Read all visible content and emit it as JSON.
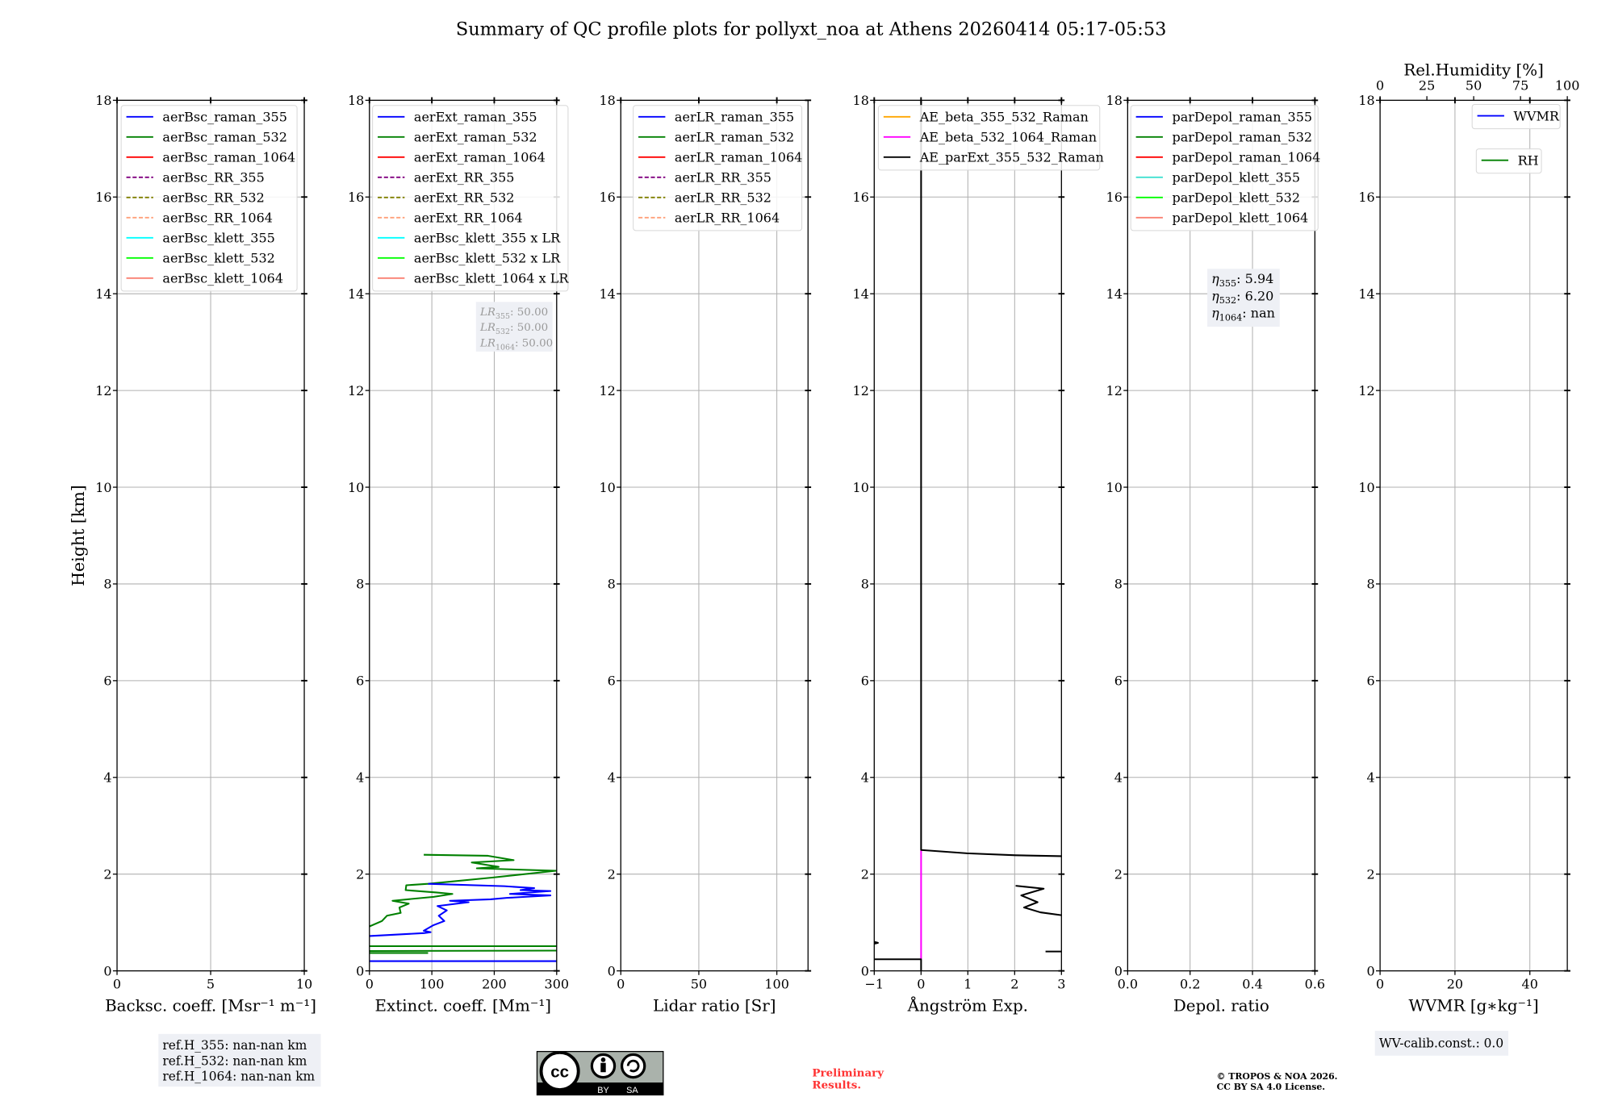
{
  "title": "Summary of QC profile plots for pollyxt_noa at Athens 20260414 05:17-05:53",
  "y_axis_label": "Height [km]",
  "chart_data": [
    {
      "id": "backscatter",
      "type": "line",
      "xlabel": "Backsc. coeff. [Msr⁻¹ m⁻¹]",
      "xlim": [
        0,
        10
      ],
      "xticks": [
        0,
        5,
        10
      ],
      "xtick_labels": [
        "0",
        "5",
        "10"
      ],
      "ylim": [
        0,
        18
      ],
      "yticks": [
        0,
        2,
        4,
        6,
        8,
        10,
        12,
        14,
        16,
        18
      ],
      "ytick_labels": [
        "0",
        "2",
        "4",
        "6",
        "8",
        "10",
        "12",
        "14",
        "16",
        "18"
      ],
      "grid": true,
      "legend_position": "top-right",
      "legend": [
        {
          "label": "aerBsc_raman_355",
          "color": "#0000ff",
          "dashed": false
        },
        {
          "label": "aerBsc_raman_532",
          "color": "#008000",
          "dashed": false
        },
        {
          "label": "aerBsc_raman_1064",
          "color": "#ff0000",
          "dashed": false
        },
        {
          "label": "aerBsc_RR_355",
          "color": "#800080",
          "dashed": true
        },
        {
          "label": "aerBsc_RR_532",
          "color": "#808000",
          "dashed": true
        },
        {
          "label": "aerBsc_RR_1064",
          "color": "#ffa07a",
          "dashed": true
        },
        {
          "label": "aerBsc_klett_355",
          "color": "#00ffff",
          "dashed": false
        },
        {
          "label": "aerBsc_klett_532",
          "color": "#00ff00",
          "dashed": false
        },
        {
          "label": "aerBsc_klett_1064",
          "color": "#fa8072",
          "dashed": false
        }
      ],
      "series": []
    },
    {
      "id": "extinction",
      "type": "line",
      "xlabel": "Extinct. coeff. [Mm⁻¹]",
      "xlim": [
        0,
        300
      ],
      "xticks": [
        0,
        100,
        200,
        300
      ],
      "xtick_labels": [
        "0",
        "100",
        "200",
        "300"
      ],
      "ylim": [
        0,
        18
      ],
      "yticks": [
        0,
        2,
        4,
        6,
        8,
        10,
        12,
        14,
        16,
        18
      ],
      "ytick_labels": [
        "0",
        "2",
        "4",
        "6",
        "8",
        "10",
        "12",
        "14",
        "16",
        "18"
      ],
      "grid": true,
      "legend_position": "top-right",
      "legend": [
        {
          "label": "aerExt_raman_355",
          "color": "#0000ff",
          "dashed": false
        },
        {
          "label": "aerExt_raman_532",
          "color": "#008000",
          "dashed": false
        },
        {
          "label": "aerExt_raman_1064",
          "color": "#ff0000",
          "dashed": false
        },
        {
          "label": "aerExt_RR_355",
          "color": "#800080",
          "dashed": true
        },
        {
          "label": "aerExt_RR_532",
          "color": "#808000",
          "dashed": true
        },
        {
          "label": "aerExt_RR_1064",
          "color": "#ffa07a",
          "dashed": true
        },
        {
          "label": "aerBsc_klett_355 x LR",
          "color": "#00ffff",
          "dashed": false
        },
        {
          "label": "aerBsc_klett_532 x LR",
          "color": "#00ff00",
          "dashed": false
        },
        {
          "label": "aerBsc_klett_1064 x LR",
          "color": "#fa8072",
          "dashed": false
        }
      ],
      "series": [
        {
          "name": "aerExt_raman_532",
          "color": "#008000",
          "points": [
            [
              87,
              2.4
            ],
            [
              190,
              2.38
            ],
            [
              231,
              2.29
            ],
            [
              164,
              2.24
            ],
            [
              207,
              2.15
            ],
            [
              172,
              2.12
            ],
            [
              299,
              2.07
            ],
            [
              198,
              1.93
            ],
            [
              94,
              1.8
            ],
            [
              59,
              1.77
            ],
            [
              58,
              1.67
            ],
            [
              107,
              1.62
            ],
            [
              133,
              1.59
            ],
            [
              103,
              1.53
            ],
            [
              37,
              1.45
            ],
            [
              63,
              1.39
            ],
            [
              48,
              1.31
            ],
            [
              50,
              1.2
            ],
            [
              28,
              1.14
            ],
            [
              20,
              1.03
            ],
            [
              0,
              0.92
            ]
          ]
        },
        {
          "name": "aerExt_raman_532",
          "color": "#008000",
          "points": [
            [
              0,
              0.51
            ],
            [
              300,
              0.51
            ]
          ]
        },
        {
          "name": "aerExt_raman_532",
          "color": "#008000",
          "points": [
            [
              0,
              0.41
            ],
            [
              300,
              0.42
            ]
          ]
        },
        {
          "name": "aerExt_raman_532",
          "color": "#008000",
          "points": [
            [
              0,
              0.37
            ],
            [
              94,
              0.37
            ]
          ]
        },
        {
          "name": "aerExt_raman_355",
          "color": "#0000ff",
          "points": [
            [
              0,
              0.72
            ],
            [
              87,
              0.78
            ],
            [
              98,
              0.8
            ],
            [
              87,
              0.83
            ],
            [
              102,
              0.94
            ],
            [
              120,
              1.03
            ],
            [
              111,
              1.14
            ],
            [
              124,
              1.25
            ],
            [
              109,
              1.34
            ],
            [
              159,
              1.42
            ],
            [
              129,
              1.45
            ],
            [
              194,
              1.48
            ],
            [
              220,
              1.51
            ],
            [
              290,
              1.56
            ],
            [
              225,
              1.59
            ],
            [
              290,
              1.65
            ],
            [
              242,
              1.67
            ],
            [
              264,
              1.71
            ],
            [
              216,
              1.75
            ],
            [
              94,
              1.8
            ]
          ]
        },
        {
          "name": "aerExt_raman_355",
          "color": "#0000ff",
          "points": [
            [
              0,
              0.2
            ],
            [
              300,
              0.2
            ]
          ]
        }
      ]
    },
    {
      "id": "lidar-ratio",
      "type": "line",
      "xlabel": "Lidar ratio [Sr]",
      "xlim": [
        0,
        120
      ],
      "xticks": [
        0,
        50,
        100
      ],
      "xtick_labels": [
        "0",
        "50",
        "100"
      ],
      "ylim": [
        0,
        18
      ],
      "yticks": [
        0,
        2,
        4,
        6,
        8,
        10,
        12,
        14,
        16,
        18
      ],
      "ytick_labels": [
        "0",
        "2",
        "4",
        "6",
        "8",
        "10",
        "12",
        "14",
        "16",
        "18"
      ],
      "grid": true,
      "legend_position": "top-right",
      "legend": [
        {
          "label": "aerLR_raman_355",
          "color": "#0000ff",
          "dashed": false
        },
        {
          "label": "aerLR_raman_532",
          "color": "#008000",
          "dashed": false
        },
        {
          "label": "aerLR_raman_1064",
          "color": "#ff0000",
          "dashed": false
        },
        {
          "label": "aerLR_RR_355",
          "color": "#800080",
          "dashed": true
        },
        {
          "label": "aerLR_RR_532",
          "color": "#808000",
          "dashed": true
        },
        {
          "label": "aerLR_RR_1064",
          "color": "#ffa07a",
          "dashed": true
        }
      ],
      "series": []
    },
    {
      "id": "angstrom",
      "type": "line",
      "xlabel": "Ångström Exp.",
      "xlim": [
        -1,
        3
      ],
      "xticks": [
        -1,
        0,
        1,
        2,
        3
      ],
      "xtick_labels": [
        "−1",
        "0",
        "1",
        "2",
        "3"
      ],
      "ylim": [
        0,
        18
      ],
      "yticks": [
        0,
        2,
        4,
        6,
        8,
        10,
        12,
        14,
        16,
        18
      ],
      "ytick_labels": [
        "0",
        "2",
        "4",
        "6",
        "8",
        "10",
        "12",
        "14",
        "16",
        "18"
      ],
      "grid": true,
      "legend_position": "top",
      "legend": [
        {
          "label": "AE_beta_355_532_Raman",
          "color": "#ffa500",
          "dashed": false
        },
        {
          "label": "AE_beta_532_1064_Raman",
          "color": "#ff00ff",
          "dashed": false
        },
        {
          "label": "AE_parExt_355_532_Raman",
          "color": "#000000",
          "dashed": false
        }
      ],
      "series": [
        {
          "name": "AE_beta_532_1064_Raman",
          "color": "#ff00ff",
          "points": [
            [
              0,
              0.24
            ],
            [
              0,
              2.5
            ]
          ]
        },
        {
          "name": "AE_parExt_355_532_Raman",
          "color": "#000000",
          "points": [
            [
              0,
              18
            ],
            [
              0,
              2.5
            ],
            [
              0.98,
              2.43
            ],
            [
              2.02,
              2.39
            ],
            [
              3.01,
              2.37
            ]
          ]
        },
        {
          "name": "AE_parExt_355_532_Raman",
          "color": "#000000",
          "points": [
            [
              -1,
              0.24
            ],
            [
              0,
              0.24
            ],
            [
              0,
              0
            ]
          ]
        },
        {
          "name": "AE_parExt_355_532_Raman",
          "color": "#000000",
          "points": [
            [
              2.02,
              1.76
            ],
            [
              2.62,
              1.7
            ],
            [
              2.14,
              1.56
            ],
            [
              2.49,
              1.42
            ],
            [
              2.2,
              1.31
            ],
            [
              2.55,
              1.21
            ],
            [
              3.0,
              1.15
            ]
          ]
        },
        {
          "name": "AE_parExt_355_532_Raman",
          "color": "#000000",
          "points": [
            [
              2.66,
              0.4
            ],
            [
              3.0,
              0.4
            ]
          ]
        },
        {
          "name": "AE_parExt_355_532_Raman",
          "color": "#000000",
          "points": [
            [
              -1,
              0.6
            ],
            [
              -0.92,
              0.58
            ],
            [
              -1,
              0.56
            ]
          ]
        }
      ]
    },
    {
      "id": "depolarization",
      "type": "line",
      "xlabel": "Depol. ratio",
      "xlim": [
        0,
        0.6
      ],
      "xticks": [
        0,
        0.2,
        0.4,
        0.6
      ],
      "xtick_labels": [
        "0.0",
        "0.2",
        "0.4",
        "0.6"
      ],
      "ylim": [
        0,
        18
      ],
      "yticks": [
        0,
        2,
        4,
        6,
        8,
        10,
        12,
        14,
        16,
        18
      ],
      "ytick_labels": [
        "0",
        "2",
        "4",
        "6",
        "8",
        "10",
        "12",
        "14",
        "16",
        "18"
      ],
      "grid": true,
      "legend_position": "top-right",
      "legend": [
        {
          "label": "parDepol_raman_355",
          "color": "#0000ff",
          "dashed": false
        },
        {
          "label": "parDepol_raman_532",
          "color": "#008000",
          "dashed": false
        },
        {
          "label": "parDepol_raman_1064",
          "color": "#ff0000",
          "dashed": false
        },
        {
          "label": "parDepol_klett_355",
          "color": "#40e0d0",
          "dashed": false
        },
        {
          "label": "parDepol_klett_532",
          "color": "#00ff00",
          "dashed": false
        },
        {
          "label": "parDepol_klett_1064",
          "color": "#fa8072",
          "dashed": false
        }
      ],
      "series": []
    },
    {
      "id": "water-vapor",
      "type": "line",
      "xlabel": "WVMR [g∗kg⁻¹]",
      "xlim": [
        0,
        50
      ],
      "xticks": [
        0,
        20,
        40
      ],
      "xtick_labels": [
        "0",
        "20",
        "40"
      ],
      "ylim": [
        0,
        18
      ],
      "yticks": [
        0,
        2,
        4,
        6,
        8,
        10,
        12,
        14,
        16,
        18
      ],
      "ytick_labels": [
        "0",
        "2",
        "4",
        "6",
        "8",
        "10",
        "12",
        "14",
        "16",
        "18"
      ],
      "grid": true,
      "legend_position": "top-right",
      "secondary_xaxis": {
        "label": "Rel.Humidity [%]",
        "xlim": [
          0,
          100
        ],
        "xticks": [
          0,
          25,
          50,
          75,
          100
        ],
        "xtick_labels": [
          "0",
          "25",
          "50",
          "75",
          "100"
        ]
      },
      "legend": [
        {
          "label": "WVMR",
          "color": "#0000ff",
          "dashed": false
        },
        {
          "label": "RH",
          "color": "#008000",
          "dashed": false
        }
      ],
      "series": []
    }
  ],
  "annotations": {
    "lr_box": [
      {
        "symbol": "LR",
        "sub": "355",
        "value": ": 50.00"
      },
      {
        "symbol": "LR",
        "sub": "532",
        "value": ": 50.00"
      },
      {
        "symbol": "LR",
        "sub": "1064",
        "value": ": 50.00"
      }
    ],
    "eta_box": [
      {
        "symbol": "η",
        "sub": "355",
        "value": ": 5.94"
      },
      {
        "symbol": "η",
        "sub": "532",
        "value": ": 6.20"
      },
      {
        "symbol": "η",
        "sub": "1064",
        "value": ": nan"
      }
    ],
    "ref_h": [
      "ref.H_355: nan-nan km",
      "ref.H_532: nan-nan km",
      "ref.H_1064: nan-nan km"
    ],
    "wv_calib": "WV-calib.const.: 0.0",
    "preliminary": [
      "Preliminary",
      "Results."
    ],
    "copyright": [
      "© TROPOS & NOA 2026.",
      "CC BY SA 4.0 License."
    ],
    "cc_logo": {
      "cc": "cc",
      "by": "BY",
      "sa": "SA"
    },
    "colors": {
      "grid": "#b0b0b0",
      "box": "#eef0f5",
      "preliminary": "#ff3333"
    }
  }
}
